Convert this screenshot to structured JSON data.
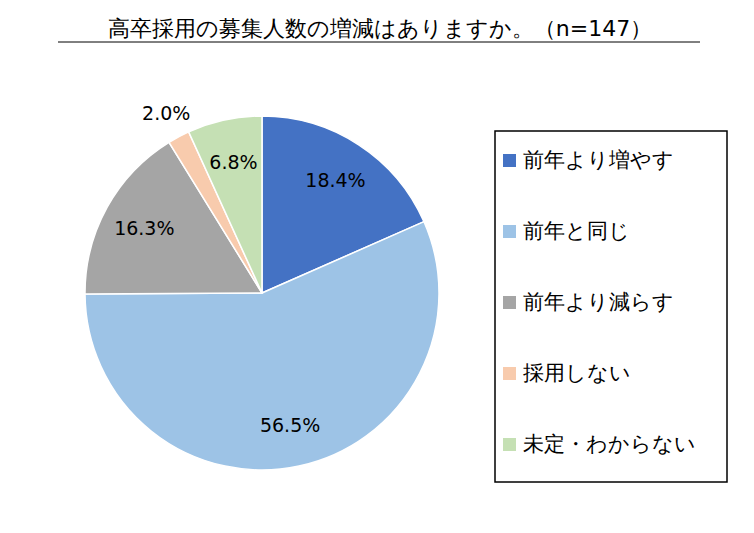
{
  "chart_data": {
    "type": "pie",
    "title": "高卒採用の募集人数の増減はありますか。（n=147）",
    "categories": [
      "前年より増やす",
      "前年と同じ",
      "前年より減らす",
      "採用しない",
      "未定・わからない"
    ],
    "values": [
      18.4,
      56.5,
      16.3,
      2.0,
      6.8
    ],
    "value_labels": [
      "18.4%",
      "56.5%",
      "16.3%",
      "2.0%",
      "6.8%"
    ],
    "colors": [
      "#4472c4",
      "#9dc3e6",
      "#a5a5a5",
      "#f8cbad",
      "#c5e0b4"
    ],
    "data_labels": true,
    "legend": "right"
  }
}
